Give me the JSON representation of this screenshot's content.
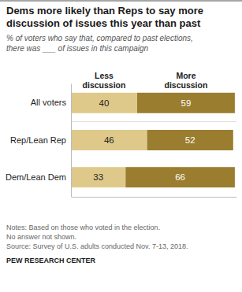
{
  "chart_data": {
    "type": "bar",
    "orientation": "horizontal",
    "stacked": true,
    "data_labels": true,
    "tick_labels": "y",
    "title": "Dems more likely than Reps to say more\ndiscussion of issues this year than past",
    "subtitle": "% of voters who say that, compared to past elections,\nthere was ___ of issues in this campaign",
    "categories": [
      "All voters",
      "Rep/Lean Rep",
      "Dem/Lean Dem"
    ],
    "series": [
      {
        "name": "Less\ndiscussion",
        "color": "#dfc98a",
        "values": [
          40,
          46,
          33
        ]
      },
      {
        "name": "More\ndiscussion",
        "color": "#9b7d2f",
        "values": [
          59,
          52,
          66
        ]
      }
    ],
    "xlim": [
      0,
      100
    ],
    "annotations": [
      "Notes: Based on those who voted in the election.",
      "No answer not shown.",
      "Source: Survey of U.S. adults conducted Nov. 7-13, 2018.",
      "PEW RESEARCH CENTER"
    ]
  }
}
